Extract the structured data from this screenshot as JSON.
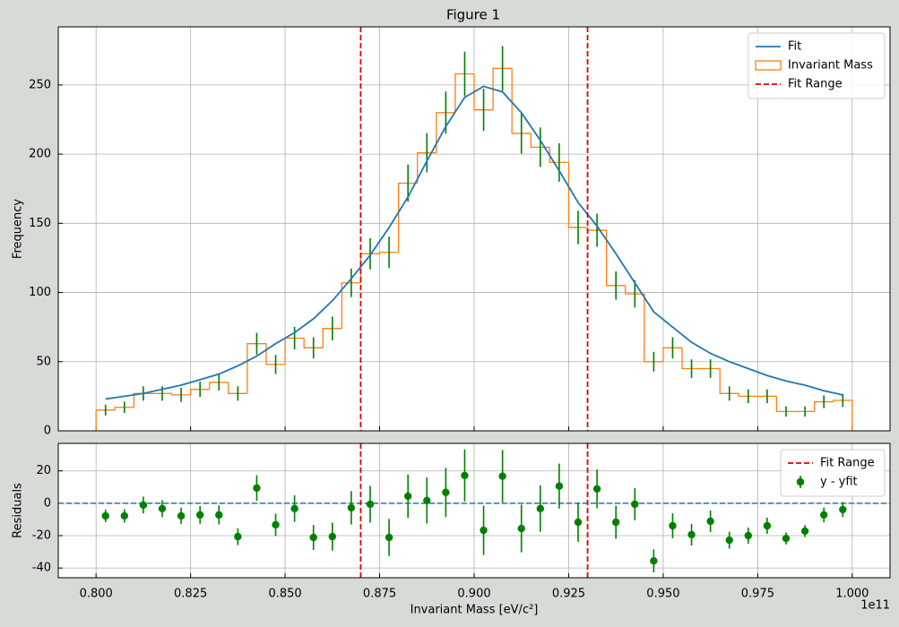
{
  "window_title": "Figure 1",
  "chart_data": [
    {
      "type": "histogram",
      "ylabel": "Frequency",
      "grid": true,
      "legend": "upper right",
      "show_xtick_labels": false,
      "xlim": [
        0.79,
        1.01
      ],
      "xticks": [
        0.8,
        0.825,
        0.85,
        0.875,
        0.9,
        0.925,
        0.95,
        0.975,
        1.0
      ],
      "ylim": [
        0,
        292
      ],
      "yticks": [
        0,
        50,
        100,
        150,
        200,
        250
      ],
      "bins": [
        0.8,
        0.805,
        0.81,
        0.815,
        0.82,
        0.825,
        0.83,
        0.835,
        0.84,
        0.845,
        0.85,
        0.855,
        0.86,
        0.865,
        0.87,
        0.875,
        0.88,
        0.885,
        0.89,
        0.895,
        0.9,
        0.905,
        0.91,
        0.915,
        0.92,
        0.925,
        0.93,
        0.935,
        0.94,
        0.945,
        0.95,
        0.955,
        0.96,
        0.965,
        0.97,
        0.975,
        0.98,
        0.985,
        0.99,
        0.995,
        1.0
      ],
      "series": [
        {
          "name": "Fit",
          "style": "line",
          "color": "#1f77b4",
          "x": [
            0.8025,
            0.8075,
            0.8125,
            0.8175,
            0.8225,
            0.8275,
            0.8325,
            0.8375,
            0.8425,
            0.8475,
            0.8525,
            0.8575,
            0.8625,
            0.8675,
            0.8725,
            0.8775,
            0.8825,
            0.8875,
            0.8925,
            0.8975,
            0.9025,
            0.9075,
            0.9125,
            0.9175,
            0.9225,
            0.9275,
            0.9325,
            0.9375,
            0.9425,
            0.9475,
            0.9525,
            0.9575,
            0.9625,
            0.9675,
            0.9725,
            0.9775,
            0.9825,
            0.9875,
            0.9925,
            0.9975
          ],
          "values": [
            23,
            25,
            27,
            30,
            33,
            37,
            41,
            47,
            54,
            63,
            71,
            81,
            94,
            110,
            127,
            147,
            169,
            195,
            220,
            241,
            249,
            245,
            230,
            210,
            188,
            165,
            148,
            128,
            107,
            86,
            75,
            64,
            56,
            50,
            45,
            40,
            36,
            33,
            29,
            26
          ]
        },
        {
          "name": "Invariant Mass",
          "style": "step",
          "color": "#ff7f0e",
          "error_color": "#008000",
          "values": [
            15,
            17,
            27,
            27,
            26,
            30,
            35,
            27,
            63,
            48,
            67,
            60,
            74,
            107,
            128,
            129,
            179,
            201,
            230,
            258,
            232,
            262,
            215,
            205,
            194,
            147,
            145,
            105,
            99,
            50,
            60,
            45,
            45,
            27,
            25,
            25,
            14,
            14,
            21,
            22
          ],
          "errors": [
            3.9,
            4.1,
            5.2,
            5.2,
            5.1,
            5.5,
            5.9,
            5.2,
            7.9,
            6.9,
            8.2,
            7.7,
            8.6,
            10.3,
            11.3,
            11.4,
            13.4,
            14.2,
            15.2,
            16.1,
            15.2,
            16.2,
            14.7,
            14.3,
            13.9,
            12.1,
            12.0,
            10.2,
            9.9,
            7.1,
            7.7,
            6.7,
            6.7,
            5.2,
            5.0,
            5.0,
            3.7,
            3.7,
            4.6,
            4.7
          ]
        }
      ],
      "vlines": {
        "name": "Fit Range",
        "color": "#dd0000",
        "x": [
          0.87,
          0.93
        ]
      }
    },
    {
      "type": "errorbar",
      "ylabel": "Residuals",
      "xlabel": "Invariant Mass [eV/c²]",
      "x_offset_label": "1e11",
      "grid": true,
      "legend": "upper right",
      "xlim": [
        0.79,
        1.01
      ],
      "xticks": [
        {
          "value": 0.8,
          "label": "0.800"
        },
        {
          "value": 0.825,
          "label": "0.825"
        },
        {
          "value": 0.85,
          "label": "0.850"
        },
        {
          "value": 0.875,
          "label": "0.875"
        },
        {
          "value": 0.9,
          "label": "0.900"
        },
        {
          "value": 0.925,
          "label": "0.925"
        },
        {
          "value": 0.95,
          "label": "0.950"
        },
        {
          "value": 0.975,
          "label": "0.975"
        },
        {
          "value": 1.0,
          "label": "1.000"
        }
      ],
      "ylim": [
        -46,
        37
      ],
      "yticks": [
        -40,
        -20,
        0,
        20
      ],
      "vlines": {
        "name": "Fit Range",
        "color": "#dd0000",
        "x": [
          0.87,
          0.93
        ]
      },
      "hline": {
        "value": 0,
        "color": "#1f77b4"
      },
      "x": [
        0.8025,
        0.8075,
        0.8125,
        0.8175,
        0.8225,
        0.8275,
        0.8325,
        0.8375,
        0.8425,
        0.8475,
        0.8525,
        0.8575,
        0.8625,
        0.8675,
        0.8725,
        0.8775,
        0.8825,
        0.8875,
        0.8925,
        0.8975,
        0.9025,
        0.9075,
        0.9125,
        0.9175,
        0.9225,
        0.9275,
        0.9325,
        0.9375,
        0.9425,
        0.9475,
        0.9525,
        0.9575,
        0.9625,
        0.9675,
        0.9725,
        0.9775,
        0.9825,
        0.9875,
        0.9925,
        0.9975
      ],
      "series": [
        {
          "name": "y - yfit",
          "color": "#008000",
          "values": [
            -7.8,
            -7.8,
            -1.1,
            -3.3,
            -7.8,
            -7.2,
            -7.2,
            -20.6,
            9.4,
            -13.3,
            -3.3,
            -21.1,
            -20.6,
            -2.8,
            -0.6,
            -21.1,
            4.4,
            1.7,
            6.7,
            17.2,
            -16.7,
            16.7,
            -15.6,
            -3.3,
            10.6,
            -11.7,
            8.9,
            -11.7,
            -0.6,
            -35.6,
            -13.9,
            -19.4,
            -11.1,
            -22.8,
            -20,
            -13.9,
            -21.7,
            -17.2,
            -7.2,
            -3.9
          ],
          "errors": [
            3.9,
            4.1,
            5.2,
            5.2,
            5.1,
            5.5,
            5.9,
            5.2,
            7.9,
            6.9,
            8.2,
            7.7,
            8.6,
            10.3,
            11.3,
            11.4,
            13.4,
            14.2,
            15.2,
            16.1,
            15.2,
            16.2,
            14.7,
            14.3,
            13.9,
            12.1,
            12.0,
            10.2,
            9.9,
            7.1,
            7.7,
            6.7,
            6.7,
            5.2,
            5.0,
            5.0,
            3.7,
            3.7,
            4.6,
            4.7
          ]
        }
      ]
    }
  ]
}
